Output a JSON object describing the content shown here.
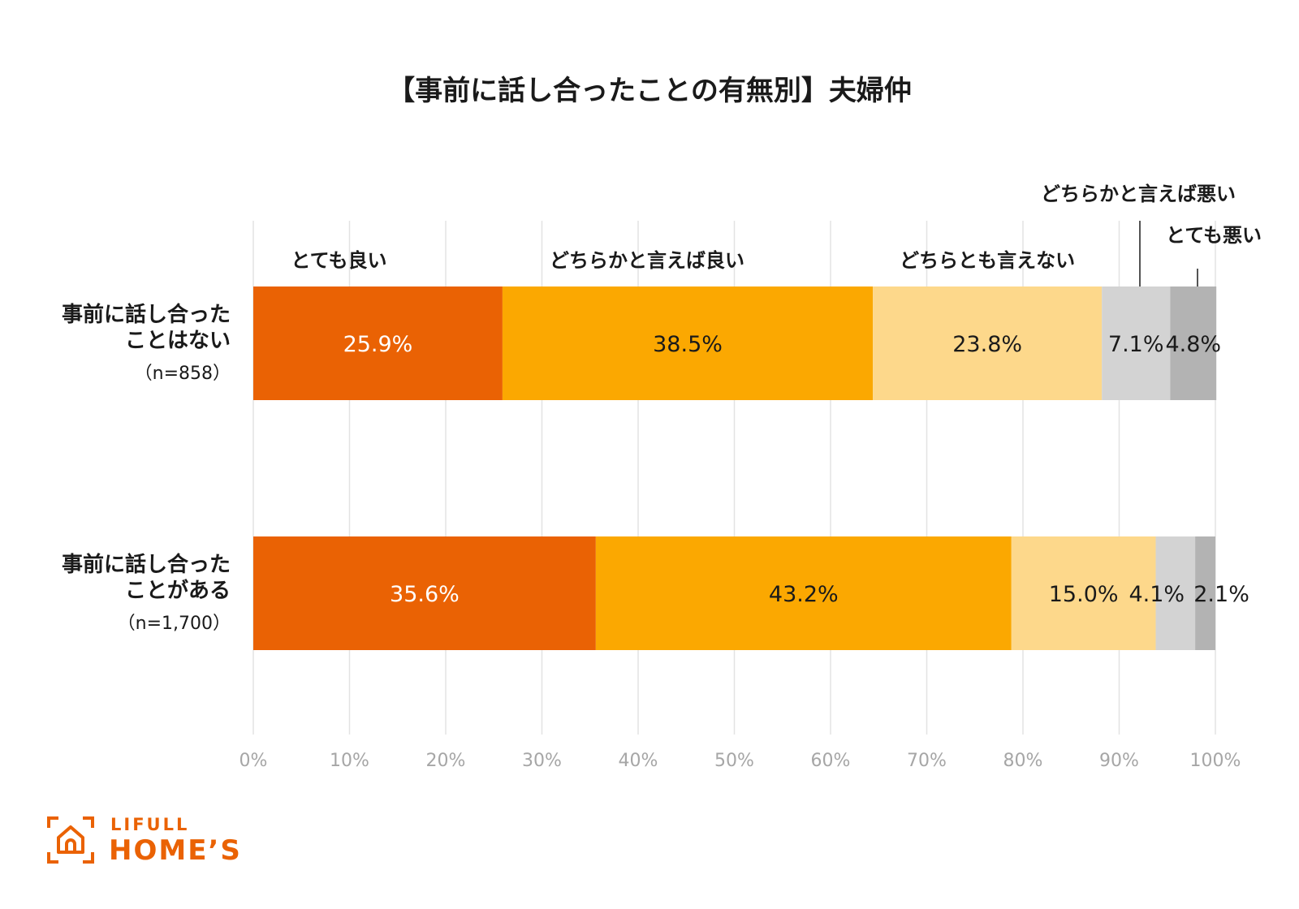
{
  "chart_data": {
    "type": "bar",
    "orientation": "horizontal",
    "stacked": true,
    "percent": true,
    "title": "【事前に話し合ったことの有無別】夫婦仲",
    "categories": [
      {
        "lines": [
          "事前に話し合った",
          "ことはない"
        ],
        "n": "（n=858）"
      },
      {
        "lines": [
          "事前に話し合った",
          "ことがある"
        ],
        "n": "（n=1,700）"
      }
    ],
    "series": [
      {
        "name": "とても良い",
        "color": "#ea6204",
        "text_color": "#ffffff",
        "values": [
          25.9,
          35.6
        ],
        "labels": [
          "25.9%",
          "35.6%"
        ]
      },
      {
        "name": "どちらかと言えば良い",
        "color": "#fba801",
        "text_color": "#1a1a1a",
        "values": [
          38.5,
          43.2
        ],
        "labels": [
          "38.5%",
          "43.2%"
        ]
      },
      {
        "name": "どちらとも言えない",
        "color": "#fdd88b",
        "text_color": "#1a1a1a",
        "values": [
          23.8,
          15.0
        ],
        "labels": [
          "23.8%",
          "15.0%"
        ]
      },
      {
        "name": "どちらかと言えば悪い",
        "color": "#d3d3d3",
        "text_color": "#1a1a1a",
        "values": [
          7.1,
          4.1
        ],
        "labels": [
          "7.1%",
          "4.1%"
        ]
      },
      {
        "name": "とても悪い",
        "color": "#b3b3b3",
        "text_color": "#1a1a1a",
        "values": [
          4.8,
          2.1
        ],
        "labels": [
          "4.8%",
          "2.1%"
        ]
      }
    ],
    "xlim": [
      0,
      100
    ],
    "xticks": [
      "0%",
      "10%",
      "20%",
      "30%",
      "40%",
      "50%",
      "60%",
      "70%",
      "80%",
      "90%",
      "100%"
    ],
    "grid": true,
    "legend": "top, labels above each segment"
  },
  "brand": {
    "logo_top": "LIFULL",
    "logo_main": "HOME’S",
    "color": "#ea6204"
  }
}
